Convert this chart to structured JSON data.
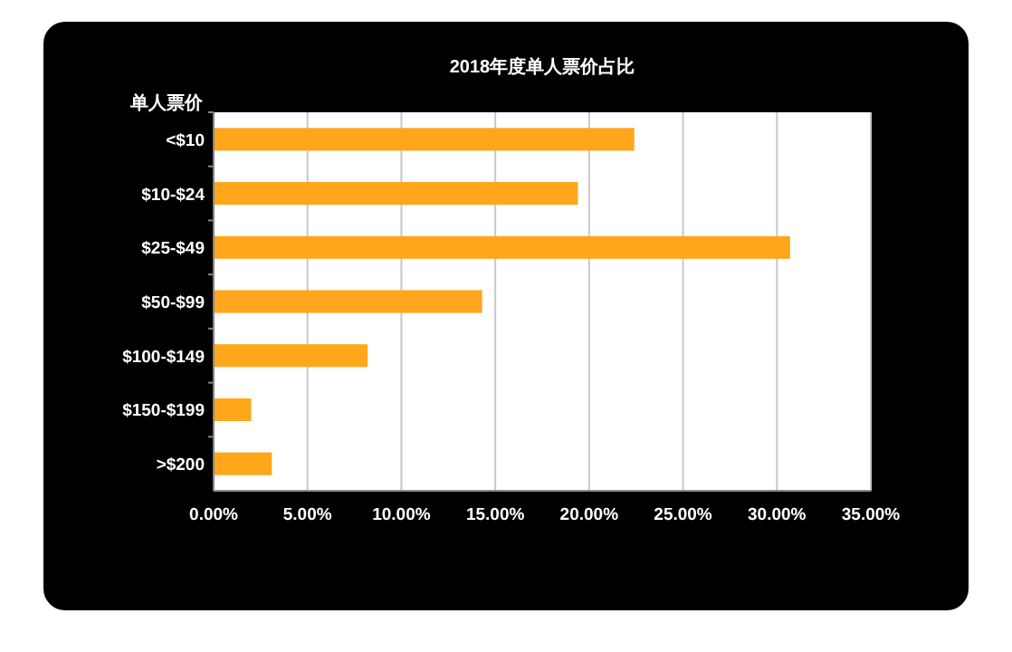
{
  "chart_data": {
    "type": "bar",
    "orientation": "horizontal",
    "title": "2018年度单人票价占比",
    "ylabel": "单人票价",
    "categories": [
      "<$10",
      "$10-$24",
      "$25-$49",
      "$50-$99",
      "$100-$149",
      "$150-$199",
      ">$200"
    ],
    "values": [
      22.4,
      19.4,
      30.7,
      14.3,
      8.2,
      2.0,
      3.1
    ],
    "color": "#ffa61a",
    "xlim": [
      0,
      35
    ],
    "xticks": [
      {
        "value": 0,
        "label": "0.00%"
      },
      {
        "value": 5,
        "label": "5.00%"
      },
      {
        "value": 10,
        "label": "10.00%"
      },
      {
        "value": 15,
        "label": "15.00%"
      },
      {
        "value": 20,
        "label": "20.00%"
      },
      {
        "value": 25,
        "label": "25.00%"
      },
      {
        "value": 30,
        "label": "30.00%"
      },
      {
        "value": 35,
        "label": "35.00%"
      }
    ],
    "grid": "x"
  }
}
